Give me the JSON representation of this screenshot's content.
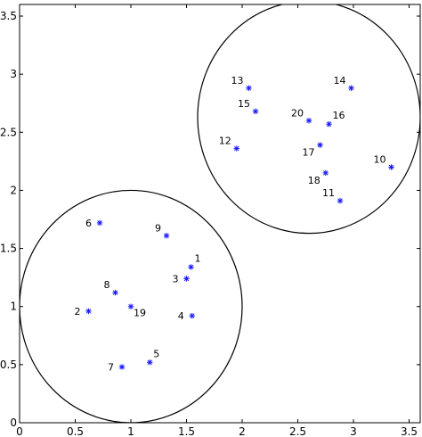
{
  "chart_data": {
    "type": "scatter",
    "title": "",
    "xlabel": "",
    "ylabel": "",
    "xlim": [
      0,
      3.6
    ],
    "ylim": [
      0,
      3.6
    ],
    "x_ticks": [
      0,
      0.5,
      1,
      1.5,
      2,
      2.5,
      3,
      3.5
    ],
    "y_ticks": [
      0,
      0.5,
      1,
      1.5,
      2,
      2.5,
      3,
      3.5
    ],
    "x_tick_labels": [
      "0",
      "0.5",
      "1",
      "1.5",
      "2",
      "2.5",
      "3",
      "3.5"
    ],
    "y_tick_labels": [
      "0",
      "0.5",
      "1",
      "1.5",
      "2",
      "2.5",
      "3",
      "3.5"
    ],
    "grid": false,
    "marker_color": "#1a1aff",
    "points": [
      {
        "label": "1",
        "x": 1.54,
        "y": 1.34,
        "label_pos": "above-right"
      },
      {
        "label": "2",
        "x": 0.62,
        "y": 0.96,
        "label_pos": "left"
      },
      {
        "label": "3",
        "x": 1.5,
        "y": 1.24,
        "label_pos": "left"
      },
      {
        "label": "4",
        "x": 1.55,
        "y": 0.92,
        "label_pos": "left"
      },
      {
        "label": "5",
        "x": 1.17,
        "y": 0.52,
        "label_pos": "above-right"
      },
      {
        "label": "6",
        "x": 0.72,
        "y": 1.72,
        "label_pos": "left"
      },
      {
        "label": "7",
        "x": 0.92,
        "y": 0.48,
        "label_pos": "left"
      },
      {
        "label": "8",
        "x": 0.86,
        "y": 1.12,
        "label_pos": "above-left"
      },
      {
        "label": "9",
        "x": 1.32,
        "y": 1.61,
        "label_pos": "above-left"
      },
      {
        "label": "10",
        "x": 3.34,
        "y": 2.2,
        "label_pos": "above-left"
      },
      {
        "label": "11",
        "x": 2.88,
        "y": 1.91,
        "label_pos": "above-left"
      },
      {
        "label": "12",
        "x": 1.95,
        "y": 2.36,
        "label_pos": "above-left"
      },
      {
        "label": "13",
        "x": 2.06,
        "y": 2.88,
        "label_pos": "above-left"
      },
      {
        "label": "14",
        "x": 2.98,
        "y": 2.88,
        "label_pos": "above-left"
      },
      {
        "label": "15",
        "x": 2.12,
        "y": 2.68,
        "label_pos": "above-left"
      },
      {
        "label": "16",
        "x": 2.78,
        "y": 2.57,
        "label_pos": "above-right"
      },
      {
        "label": "17",
        "x": 2.7,
        "y": 2.39,
        "label_pos": "below-left"
      },
      {
        "label": "18",
        "x": 2.75,
        "y": 2.15,
        "label_pos": "below-left"
      },
      {
        "label": "19",
        "x": 1.0,
        "y": 1.0,
        "label_pos": "below-right"
      },
      {
        "label": "20",
        "x": 2.6,
        "y": 2.6,
        "label_pos": "above-left"
      }
    ],
    "circles": [
      {
        "cx": 1.0,
        "cy": 1.0,
        "r": 1.0
      },
      {
        "cx": 2.6,
        "cy": 2.63,
        "r": 1.0
      }
    ]
  }
}
